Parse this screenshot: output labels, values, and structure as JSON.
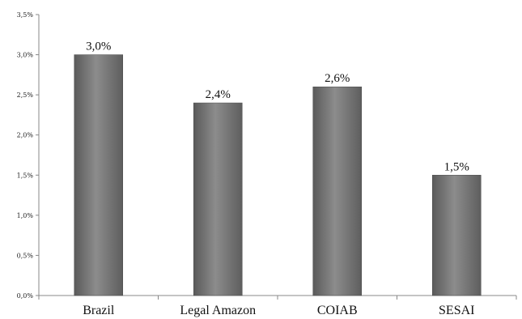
{
  "chart_data": {
    "type": "bar",
    "categories": [
      "Brazil",
      "Legal Amazon",
      "COIAB",
      "SESAI"
    ],
    "values": [
      3.0,
      2.4,
      2.6,
      1.5
    ],
    "data_labels": [
      "3,0%",
      "2,4%",
      "2,6%",
      "1,5%"
    ],
    "ylim": [
      0,
      3.5
    ],
    "yticks": [
      0,
      0.5,
      1.0,
      1.5,
      2.0,
      2.5,
      3.0,
      3.5
    ],
    "ytick_labels": [
      "0,0%",
      "0,5%",
      "1,0%",
      "1,5%",
      "2,0%",
      "2,5%",
      "3,0%",
      "3,5%"
    ],
    "grid": false,
    "legend": "none",
    "colors": {
      "bar": "#6e6e6e",
      "bar_highlight": "#9a9a9a",
      "axis": "#888888"
    }
  }
}
